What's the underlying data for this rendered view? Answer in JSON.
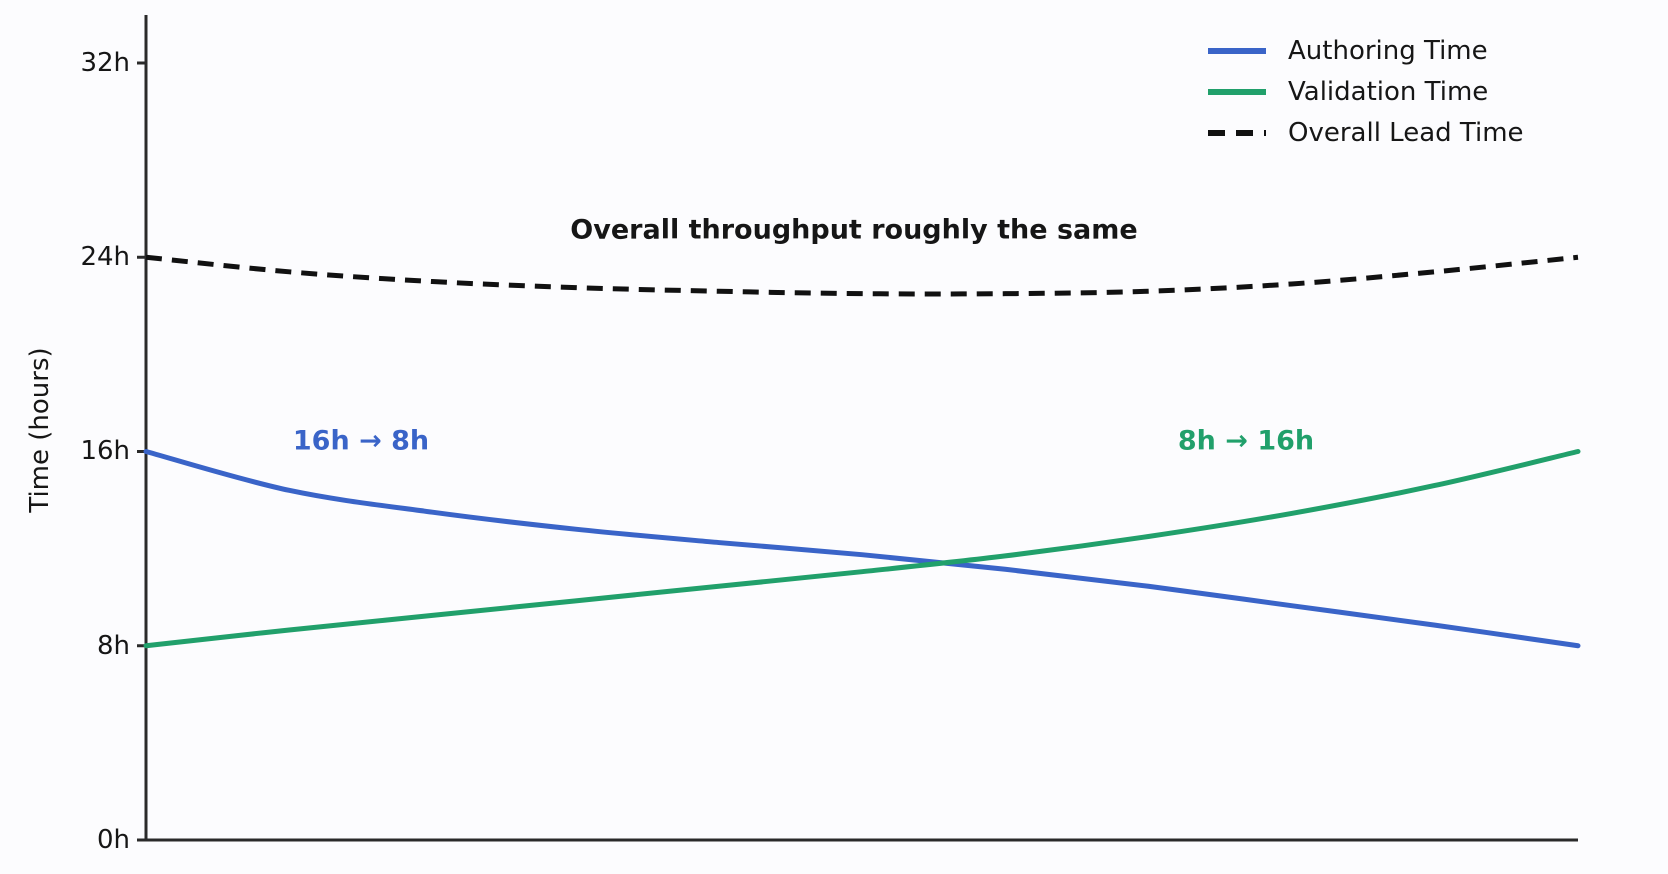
{
  "chart_data": {
    "type": "line",
    "ylabel": "Time (hours)",
    "xlabel": "",
    "ylim": [
      0,
      34
    ],
    "x_axis_labels_shown": false,
    "grid": false,
    "yticks": [
      {
        "value": 0,
        "label": "0h"
      },
      {
        "value": 8,
        "label": "8h"
      },
      {
        "value": 16,
        "label": "16h"
      },
      {
        "value": 24,
        "label": "24h"
      },
      {
        "value": 32,
        "label": "32h"
      }
    ],
    "x": [
      0,
      0.1,
      0.2,
      0.3,
      0.4,
      0.5,
      0.6,
      0.7,
      0.8,
      0.9,
      1.0
    ],
    "series": [
      {
        "name": "Authoring Time",
        "color": "#3a64c8",
        "style": "solid",
        "start_value_hours": 16,
        "end_value_hours": 8,
        "values": [
          16.0,
          14.4,
          13.5,
          12.8,
          12.25,
          11.75,
          11.15,
          10.45,
          9.65,
          8.85,
          8.0
        ]
      },
      {
        "name": "Validation Time",
        "color": "#21a06b",
        "style": "solid",
        "start_value_hours": 8,
        "end_value_hours": 16,
        "values": [
          8.0,
          8.65,
          9.25,
          9.85,
          10.45,
          11.05,
          11.7,
          12.5,
          13.45,
          14.6,
          16.0
        ]
      },
      {
        "name": "Overall Lead Time",
        "color": "#111111",
        "style": "dashed",
        "start_value_hours": 24,
        "end_value_hours": 24,
        "values": [
          24.0,
          23.4,
          23.0,
          22.75,
          22.6,
          22.5,
          22.5,
          22.6,
          22.9,
          23.4,
          24.0
        ]
      }
    ],
    "annotations": [
      {
        "text": "16h → 8h",
        "series": "Authoring Time",
        "x": 0.15,
        "y_hours": 16.4
      },
      {
        "text": "8h → 16h",
        "series": "Validation Time",
        "x": 0.77,
        "y_hours": 16.4
      },
      {
        "text": "Overall throughput roughly the same",
        "series": null,
        "x": 0.49,
        "y_hours": 25.1
      }
    ],
    "legend": {
      "position": "upper right",
      "entries": [
        "Authoring Time",
        "Validation Time",
        "Overall Lead Time"
      ]
    },
    "axis_color": "#2a2a2a"
  }
}
